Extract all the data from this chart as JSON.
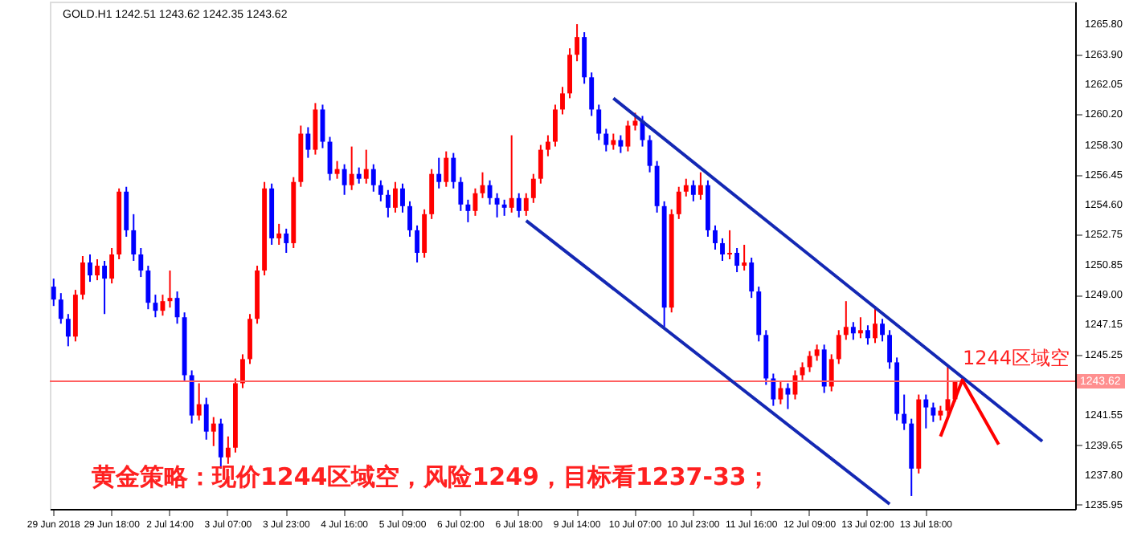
{
  "chart_data": {
    "type": "candlestick",
    "title": "GOLD.H1 1242.51 1243.62 1242.35 1243.62",
    "categories": [
      "29 Jun 2018",
      null,
      null,
      null,
      null,
      null,
      null,
      null,
      "29 Jun 18:00",
      null,
      null,
      null,
      null,
      null,
      null,
      null,
      "2 Jul 14:00",
      null,
      null,
      null,
      null,
      null,
      null,
      null,
      "3 Jul 07:00",
      null,
      null,
      null,
      null,
      null,
      null,
      null,
      "3 Jul 23:00",
      null,
      null,
      null,
      null,
      null,
      null,
      null,
      "4 Jul 16:00",
      null,
      null,
      null,
      null,
      null,
      null,
      null,
      "5 Jul 09:00",
      null,
      null,
      null,
      null,
      null,
      null,
      null,
      "6 Jul 02:00",
      null,
      null,
      null,
      null,
      null,
      null,
      null,
      "6 Jul 18:00",
      null,
      null,
      null,
      null,
      null,
      null,
      null,
      "9 Jul 14:00",
      null,
      null,
      null,
      null,
      null,
      null,
      null,
      "10 Jul 07:00",
      null,
      null,
      null,
      null,
      null,
      null,
      null,
      "10 Jul 23:00",
      null,
      null,
      null,
      null,
      null,
      null,
      null,
      "11 Jul 16:00",
      null,
      null,
      null,
      null,
      null,
      null,
      null,
      "12 Jul 09:00",
      null,
      null,
      null,
      null,
      null,
      null,
      null,
      "13 Jul 02:00",
      null,
      null,
      null,
      null,
      null,
      null,
      null,
      "13 Jul 18:00",
      null,
      null,
      null,
      null,
      null,
      null,
      null,
      null,
      null,
      null,
      null,
      null,
      null,
      null,
      null,
      null,
      null,
      null,
      null,
      null
    ],
    "ohlc": [
      [
        1249.5,
        1250.0,
        1248.3,
        1248.7
      ],
      [
        1248.7,
        1249.1,
        1247.2,
        1247.5
      ],
      [
        1247.5,
        1247.8,
        1245.8,
        1246.4
      ],
      [
        1246.4,
        1249.3,
        1246.1,
        1249.0
      ],
      [
        1249.0,
        1251.4,
        1248.7,
        1251.0
      ],
      [
        1251.0,
        1251.5,
        1249.8,
        1250.2
      ],
      [
        1250.2,
        1251.2,
        1249.9,
        1250.8
      ],
      [
        1250.8,
        1251.1,
        1247.8,
        1250.0
      ],
      [
        1250.0,
        1251.9,
        1249.7,
        1251.5
      ],
      [
        1251.5,
        1255.6,
        1251.2,
        1255.4
      ],
      [
        1255.4,
        1255.7,
        1252.6,
        1253.0
      ],
      [
        1253.0,
        1254.0,
        1251.1,
        1251.5
      ],
      [
        1251.5,
        1251.9,
        1250.1,
        1250.5
      ],
      [
        1250.5,
        1250.8,
        1248.1,
        1248.5
      ],
      [
        1248.5,
        1249.0,
        1247.6,
        1248.0
      ],
      [
        1248.0,
        1249.0,
        1247.7,
        1248.6
      ],
      [
        1248.6,
        1250.5,
        1248.2,
        1248.8
      ],
      [
        1248.8,
        1249.2,
        1247.2,
        1247.6
      ],
      [
        1247.6,
        1247.9,
        1243.6,
        1244.0
      ],
      [
        1244.0,
        1244.3,
        1241.0,
        1241.5
      ],
      [
        1241.5,
        1243.5,
        1241.2,
        1242.2
      ],
      [
        1242.2,
        1242.6,
        1240.0,
        1240.5
      ],
      [
        1240.5,
        1241.4,
        1239.6,
        1241.0
      ],
      [
        1241.0,
        1241.3,
        1238.2,
        1238.9
      ],
      [
        1238.9,
        1240.2,
        1238.5,
        1239.5
      ],
      [
        1239.5,
        1243.8,
        1239.2,
        1243.5
      ],
      [
        1243.5,
        1245.3,
        1243.2,
        1245.0
      ],
      [
        1245.0,
        1247.8,
        1244.7,
        1247.5
      ],
      [
        1247.5,
        1250.8,
        1247.2,
        1250.5
      ],
      [
        1250.5,
        1256.0,
        1250.2,
        1255.6
      ],
      [
        1255.6,
        1255.9,
        1252.1,
        1252.5
      ],
      [
        1252.5,
        1253.4,
        1252.1,
        1252.8
      ],
      [
        1252.8,
        1253.1,
        1251.6,
        1252.2
      ],
      [
        1252.2,
        1256.3,
        1251.9,
        1256.0
      ],
      [
        1256.0,
        1259.5,
        1255.7,
        1259.0
      ],
      [
        1259.0,
        1259.4,
        1257.5,
        1258.0
      ],
      [
        1258.0,
        1260.9,
        1257.7,
        1260.5
      ],
      [
        1260.5,
        1260.8,
        1258.1,
        1258.5
      ],
      [
        1258.5,
        1258.8,
        1256.1,
        1256.5
      ],
      [
        1256.5,
        1257.3,
        1256.2,
        1256.8
      ],
      [
        1256.8,
        1257.1,
        1255.2,
        1255.8
      ],
      [
        1255.8,
        1258.2,
        1255.5,
        1256.5
      ],
      [
        1256.5,
        1256.9,
        1255.9,
        1256.2
      ],
      [
        1256.2,
        1258.0,
        1255.9,
        1256.8
      ],
      [
        1256.8,
        1257.1,
        1255.4,
        1255.8
      ],
      [
        1255.8,
        1256.1,
        1254.8,
        1255.2
      ],
      [
        1255.2,
        1255.5,
        1253.8,
        1254.4
      ],
      [
        1254.4,
        1256.0,
        1254.1,
        1255.6
      ],
      [
        1255.6,
        1255.9,
        1254.1,
        1254.5
      ],
      [
        1254.5,
        1254.8,
        1252.6,
        1253.0
      ],
      [
        1253.0,
        1253.3,
        1251.0,
        1251.6
      ],
      [
        1251.6,
        1254.3,
        1251.3,
        1254.0
      ],
      [
        1254.0,
        1256.8,
        1253.7,
        1256.5
      ],
      [
        1256.5,
        1257.5,
        1255.6,
        1256.0
      ],
      [
        1256.0,
        1257.9,
        1255.7,
        1257.5
      ],
      [
        1257.5,
        1257.8,
        1255.6,
        1256.0
      ],
      [
        1256.0,
        1256.3,
        1254.2,
        1254.6
      ],
      [
        1254.6,
        1254.9,
        1253.5,
        1254.2
      ],
      [
        1254.2,
        1255.6,
        1253.9,
        1255.3
      ],
      [
        1255.3,
        1256.6,
        1255.0,
        1255.8
      ],
      [
        1255.8,
        1256.1,
        1254.6,
        1255.0
      ],
      [
        1255.0,
        1255.3,
        1253.8,
        1254.6
      ],
      [
        1254.6,
        1254.9,
        1253.9,
        1254.4
      ],
      [
        1254.4,
        1258.9,
        1254.1,
        1255.0
      ],
      [
        1255.0,
        1255.3,
        1253.8,
        1254.2
      ],
      [
        1254.2,
        1255.3,
        1253.9,
        1255.0
      ],
      [
        1255.0,
        1256.5,
        1254.7,
        1256.2
      ],
      [
        1256.2,
        1258.3,
        1255.9,
        1258.0
      ],
      [
        1258.0,
        1258.9,
        1257.6,
        1258.5
      ],
      [
        1258.5,
        1260.8,
        1258.2,
        1260.5
      ],
      [
        1260.5,
        1261.9,
        1260.2,
        1261.5
      ],
      [
        1261.5,
        1264.3,
        1261.2,
        1263.9
      ],
      [
        1263.9,
        1265.8,
        1263.5,
        1265.0
      ],
      [
        1265.0,
        1265.3,
        1262.1,
        1262.5
      ],
      [
        1262.5,
        1262.8,
        1260.1,
        1260.5
      ],
      [
        1260.5,
        1260.8,
        1258.6,
        1259.0
      ],
      [
        1259.0,
        1259.3,
        1257.9,
        1258.3
      ],
      [
        1258.3,
        1259.0,
        1258.0,
        1258.6
      ],
      [
        1258.6,
        1258.9,
        1257.8,
        1258.2
      ],
      [
        1258.2,
        1259.8,
        1257.9,
        1259.5
      ],
      [
        1259.5,
        1260.3,
        1259.2,
        1259.8
      ],
      [
        1259.8,
        1260.1,
        1258.2,
        1258.6
      ],
      [
        1258.6,
        1258.9,
        1256.6,
        1257.0
      ],
      [
        1257.0,
        1257.3,
        1254.1,
        1254.5
      ],
      [
        1254.5,
        1254.8,
        1247.0,
        1248.2
      ],
      [
        1248.2,
        1254.3,
        1247.9,
        1254.0
      ],
      [
        1254.0,
        1255.7,
        1253.7,
        1255.4
      ],
      [
        1255.4,
        1256.2,
        1255.1,
        1255.8
      ],
      [
        1255.8,
        1256.1,
        1254.8,
        1255.2
      ],
      [
        1255.2,
        1256.6,
        1254.9,
        1255.8
      ],
      [
        1255.8,
        1256.1,
        1252.6,
        1253.0
      ],
      [
        1253.0,
        1253.3,
        1251.8,
        1252.2
      ],
      [
        1252.2,
        1252.5,
        1251.1,
        1251.5
      ],
      [
        1251.5,
        1253.0,
        1251.2,
        1251.6
      ],
      [
        1251.6,
        1251.9,
        1250.4,
        1250.8
      ],
      [
        1250.8,
        1252.1,
        1250.5,
        1251.0
      ],
      [
        1251.0,
        1251.3,
        1248.8,
        1249.2
      ],
      [
        1249.2,
        1249.5,
        1246.1,
        1246.5
      ],
      [
        1246.5,
        1246.8,
        1243.4,
        1243.8
      ],
      [
        1243.8,
        1244.1,
        1242.1,
        1242.5
      ],
      [
        1242.5,
        1243.6,
        1242.2,
        1243.2
      ],
      [
        1243.2,
        1243.5,
        1241.9,
        1242.8
      ],
      [
        1242.8,
        1244.3,
        1242.5,
        1244.0
      ],
      [
        1244.0,
        1244.8,
        1243.7,
        1244.5
      ],
      [
        1244.5,
        1245.5,
        1244.2,
        1245.2
      ],
      [
        1245.2,
        1245.9,
        1244.9,
        1245.6
      ],
      [
        1245.6,
        1245.9,
        1242.9,
        1243.3
      ],
      [
        1243.3,
        1245.3,
        1243.0,
        1245.0
      ],
      [
        1245.0,
        1246.8,
        1244.7,
        1246.5
      ],
      [
        1246.5,
        1248.6,
        1246.2,
        1247.0
      ],
      [
        1247.0,
        1247.3,
        1246.2,
        1246.6
      ],
      [
        1246.6,
        1247.6,
        1246.3,
        1246.8
      ],
      [
        1246.8,
        1247.1,
        1245.9,
        1246.3
      ],
      [
        1246.3,
        1248.3,
        1246.0,
        1247.2
      ],
      [
        1247.2,
        1247.5,
        1246.1,
        1246.5
      ],
      [
        1246.5,
        1246.8,
        1244.4,
        1244.8
      ],
      [
        1244.8,
        1245.1,
        1241.2,
        1241.6
      ],
      [
        1241.6,
        1242.8,
        1240.6,
        1241.0
      ],
      [
        1241.0,
        1241.3,
        1236.5,
        1238.2
      ],
      [
        1238.2,
        1242.8,
        1237.9,
        1242.5
      ],
      [
        1242.5,
        1242.8,
        1240.7,
        1242.0
      ],
      [
        1242.0,
        1242.3,
        1241.1,
        1241.5
      ],
      [
        1241.5,
        1242.1,
        1241.2,
        1241.8
      ],
      [
        1241.8,
        1244.6,
        1241.5,
        1242.51
      ],
      [
        1242.51,
        1243.62,
        1242.35,
        1243.62
      ],
      null,
      null,
      null,
      null,
      null,
      null,
      null,
      null,
      null,
      null,
      null,
      null,
      null,
      null,
      null,
      null
    ],
    "colors": [
      "#0000ff",
      "#0000ff",
      "#0000ff",
      "#ff0000",
      "#ff0000",
      "#0000ff",
      "#ff0000",
      "#0000ff",
      "#ff0000",
      "#ff0000",
      "#0000ff",
      "#0000ff",
      "#0000ff",
      "#0000ff",
      "#0000ff",
      "#ff0000",
      "#ff0000",
      "#0000ff",
      "#0000ff",
      "#0000ff",
      "#ff0000",
      "#0000ff",
      "#ff0000",
      "#0000ff",
      "#ff0000",
      "#ff0000",
      "#ff0000",
      "#ff0000",
      "#ff0000",
      "#ff0000",
      "#0000ff",
      "#ff0000",
      "#0000ff",
      "#ff0000",
      "#ff0000",
      "#0000ff",
      "#ff0000",
      "#0000ff",
      "#0000ff",
      "#ff0000",
      "#0000ff",
      "#ff0000",
      "#0000ff",
      "#ff0000",
      "#0000ff",
      "#0000ff",
      "#0000ff",
      "#ff0000",
      "#0000ff",
      "#0000ff",
      "#0000ff",
      "#ff0000",
      "#ff0000",
      "#0000ff",
      "#ff0000",
      "#0000ff",
      "#0000ff",
      "#0000ff",
      "#ff0000",
      "#ff0000",
      "#0000ff",
      "#0000ff",
      "#0000ff",
      "#ff0000",
      "#0000ff",
      "#ff0000",
      "#ff0000",
      "#ff0000",
      "#ff0000",
      "#ff0000",
      "#ff0000",
      "#ff0000",
      "#ff0000",
      "#0000ff",
      "#0000ff",
      "#0000ff",
      "#0000ff",
      "#ff0000",
      "#0000ff",
      "#ff0000",
      "#ff0000",
      "#0000ff",
      "#0000ff",
      "#0000ff",
      "#0000ff",
      "#ff0000",
      "#ff0000",
      "#ff0000",
      "#0000ff",
      "#ff0000",
      "#0000ff",
      "#0000ff",
      "#0000ff",
      "#ff0000",
      "#0000ff",
      "#ff0000",
      "#0000ff",
      "#0000ff",
      "#0000ff",
      "#0000ff",
      "#ff0000",
      "#0000ff",
      "#ff0000",
      "#ff0000",
      "#ff0000",
      "#ff0000",
      "#0000ff",
      "#ff0000",
      "#ff0000",
      "#ff0000",
      "#0000ff",
      "#ff0000",
      "#0000ff",
      "#ff0000",
      "#0000ff",
      "#0000ff",
      "#0000ff",
      "#0000ff",
      "#0000ff",
      "#ff0000",
      "#0000ff",
      "#0000ff",
      "#ff0000",
      "#ff0000",
      "#ff0000",
      null,
      null,
      null,
      null,
      null,
      null,
      null,
      null,
      null,
      null,
      null,
      null,
      null,
      null,
      null,
      null
    ],
    "series": [
      {
        "type": "line",
        "color": "#1428b4",
        "values": [
          null,
          null,
          null,
          null,
          null,
          null,
          null,
          null,
          null,
          null,
          null,
          null,
          null,
          null,
          null,
          null,
          null,
          null,
          null,
          null,
          null,
          null,
          null,
          null,
          null,
          null,
          null,
          null,
          null,
          null,
          null,
          null,
          null,
          null,
          null,
          null,
          null,
          null,
          null,
          null,
          null,
          null,
          null,
          null,
          null,
          null,
          null,
          null,
          null,
          null,
          null,
          null,
          null,
          null,
          null,
          null,
          null,
          null,
          null,
          null,
          null,
          null,
          null,
          null,
          null,
          null,
          null,
          null,
          null,
          null,
          null,
          null,
          null,
          null,
          null,
          null,
          null,
          1261.2,
          null,
          null,
          null,
          null,
          null,
          null,
          null,
          null,
          null,
          null,
          null,
          null,
          null,
          null,
          null,
          null,
          null,
          null,
          null,
          null,
          null,
          null,
          null,
          null,
          null,
          null,
          null,
          null,
          null,
          null,
          null,
          null,
          null,
          null,
          null,
          null,
          null,
          null,
          null,
          null,
          null,
          null,
          null,
          null,
          null,
          null,
          null,
          null,
          null,
          null,
          null,
          null,
          null,
          null,
          null,
          null,
          null,
          null,
          1239.9,
          null,
          null,
          null,
          null
        ]
      },
      {
        "type": "line",
        "color": "#1428b4",
        "values": [
          null,
          null,
          null,
          null,
          null,
          null,
          null,
          null,
          null,
          null,
          null,
          null,
          null,
          null,
          null,
          null,
          null,
          null,
          null,
          null,
          null,
          null,
          null,
          null,
          null,
          null,
          null,
          null,
          null,
          null,
          null,
          null,
          null,
          null,
          null,
          null,
          null,
          null,
          null,
          null,
          null,
          null,
          null,
          null,
          null,
          null,
          null,
          null,
          null,
          null,
          null,
          null,
          null,
          null,
          null,
          null,
          null,
          null,
          null,
          null,
          null,
          null,
          null,
          null,
          null,
          1253.6,
          null,
          null,
          null,
          null,
          null,
          null,
          null,
          null,
          null,
          null,
          null,
          null,
          null,
          null,
          null,
          null,
          null,
          null,
          null,
          null,
          null,
          null,
          null,
          null,
          null,
          null,
          null,
          null,
          null,
          null,
          null,
          null,
          null,
          null,
          null,
          null,
          null,
          null,
          null,
          null,
          null,
          null,
          null,
          null,
          null,
          null,
          null,
          null,
          null,
          1236.0,
          null,
          null,
          null,
          null,
          null,
          null,
          null,
          null,
          null,
          null,
          null,
          null,
          null,
          null,
          null,
          null,
          null,
          null,
          null,
          null,
          null,
          null,
          null,
          null,
          null
        ]
      },
      {
        "type": "line",
        "color": "#ff0000",
        "values": [
          null,
          null,
          null,
          null,
          null,
          null,
          null,
          null,
          null,
          null,
          null,
          null,
          null,
          null,
          null,
          null,
          null,
          null,
          null,
          null,
          null,
          null,
          null,
          null,
          null,
          null,
          null,
          null,
          null,
          null,
          null,
          null,
          null,
          null,
          null,
          null,
          null,
          null,
          null,
          null,
          null,
          null,
          null,
          null,
          null,
          null,
          null,
          null,
          null,
          null,
          null,
          null,
          null,
          null,
          null,
          null,
          null,
          null,
          null,
          null,
          null,
          null,
          null,
          null,
          null,
          null,
          null,
          null,
          null,
          null,
          null,
          null,
          null,
          null,
          null,
          null,
          null,
          null,
          null,
          null,
          null,
          null,
          null,
          null,
          null,
          null,
          null,
          null,
          null,
          null,
          null,
          null,
          null,
          null,
          null,
          null,
          null,
          null,
          null,
          null,
          null,
          null,
          null,
          null,
          null,
          null,
          null,
          null,
          null,
          null,
          null,
          null,
          null,
          null,
          null,
          null,
          null,
          null,
          null,
          null,
          null,
          null,
          1240.2,
          null,
          null,
          1243.7,
          null,
          null,
          null,
          null,
          1239.7,
          null,
          null,
          null,
          null,
          null,
          null,
          null,
          null,
          null,
          null
        ]
      }
    ],
    "ylim": [
      1235.7,
      1267.2
    ],
    "yticks": [
      {
        "value": 1265.8,
        "label": "1265.80"
      },
      {
        "value": 1263.9,
        "label": "1263.90"
      },
      {
        "value": 1262.05,
        "label": "1262.05"
      },
      {
        "value": 1260.2,
        "label": "1260.20"
      },
      {
        "value": 1258.3,
        "label": "1258.30"
      },
      {
        "value": 1256.45,
        "label": "1256.45"
      },
      {
        "value": 1254.6,
        "label": "1254.60"
      },
      {
        "value": 1252.75,
        "label": "1252.75"
      },
      {
        "value": 1250.85,
        "label": "1250.85"
      },
      {
        "value": 1249.0,
        "label": "1249.00"
      },
      {
        "value": 1247.15,
        "label": "1247.15"
      },
      {
        "value": 1245.25,
        "label": "1245.25"
      },
      {
        "value": 1241.55,
        "label": "1241.55"
      },
      {
        "value": 1239.65,
        "label": "1239.65"
      },
      {
        "value": 1237.8,
        "label": "1237.80"
      },
      {
        "value": 1235.95,
        "label": "1235.95"
      }
    ],
    "ref_lines": [
      {
        "axis": "y",
        "value": 1243.62,
        "label": "1243.62",
        "color": "#ff6060"
      }
    ],
    "annotations": [
      "1244区域空",
      "黄金策略：现价1244区域空，风险1249，目标看1237-33；"
    ],
    "grid": false
  }
}
